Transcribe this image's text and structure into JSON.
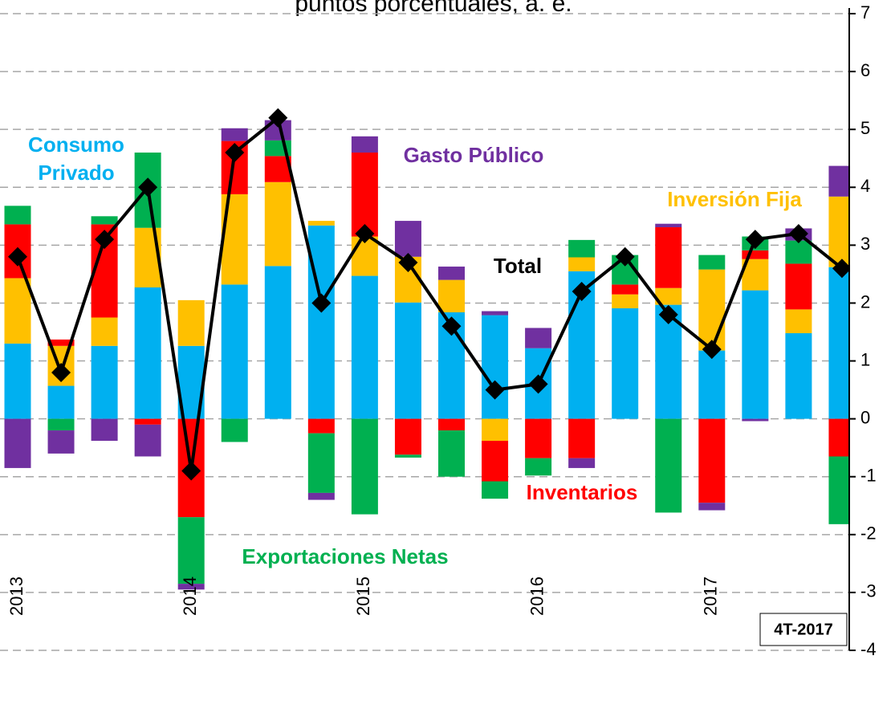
{
  "chart_data": {
    "type": "bar",
    "stacked": true,
    "title": "puntos porcentuales, a. e.",
    "annotation": "4T-2017",
    "categories": [
      "2013",
      null,
      null,
      null,
      "2014",
      null,
      null,
      null,
      "2015",
      null,
      null,
      null,
      "2016",
      null,
      null,
      null,
      "2017",
      null,
      null,
      null
    ],
    "series": [
      {
        "name": "Consumo Privado",
        "color": "#00b0f0",
        "values": [
          1.3,
          0.57,
          1.26,
          2.27,
          1.26,
          2.32,
          2.64,
          3.34,
          2.47,
          2.01,
          1.84,
          1.79,
          1.22,
          2.55,
          1.91,
          1.97,
          1.18,
          2.22,
          1.48,
          2.62
        ]
      },
      {
        "name": "Inversión Fija",
        "color": "#ffc000",
        "values": [
          1.13,
          0.69,
          0.49,
          1.03,
          0.79,
          1.56,
          1.45,
          0.08,
          0.68,
          0.79,
          0.56,
          -0.38,
          0,
          0.24,
          0.24,
          0.29,
          1.4,
          0.54,
          0.41,
          1.22
        ]
      },
      {
        "name": "Inventarios",
        "color": "#ff0000",
        "values": [
          0.93,
          0.11,
          1.61,
          -0.1,
          -1.7,
          0.92,
          0.45,
          -0.25,
          1.45,
          -0.62,
          -0.2,
          -0.7,
          -0.68,
          -0.68,
          0.17,
          1.05,
          -1.45,
          0.15,
          0.79,
          -0.65
        ]
      },
      {
        "name": "Exportaciones Netas",
        "color": "#00b050",
        "values": [
          0.32,
          -0.2,
          0.14,
          1.3,
          -1.15,
          -0.4,
          0.27,
          -1.03,
          -1.65,
          -0.05,
          -0.8,
          -0.3,
          -0.3,
          0.3,
          0.51,
          -1.62,
          0.25,
          0.24,
          0.4,
          -1.17
        ]
      },
      {
        "name": "Gasto Público",
        "color": "#7030a0",
        "values": [
          -0.85,
          -0.4,
          -0.38,
          -0.55,
          -0.1,
          0.22,
          0.35,
          -0.12,
          0.28,
          0.62,
          0.23,
          0.07,
          0.35,
          -0.17,
          0,
          0.06,
          -0.13,
          -0.04,
          0.21,
          0.53
        ]
      },
      {
        "name": "Total",
        "type": "line",
        "color": "#000000",
        "values": [
          2.8,
          0.8,
          3.1,
          4.0,
          -0.9,
          4.6,
          5.2,
          2.0,
          3.2,
          2.7,
          1.6,
          0.5,
          0.6,
          2.2,
          2.8,
          1.8,
          1.2,
          3.1,
          3.2,
          2.6
        ]
      }
    ],
    "ylim": [
      -4,
      7
    ],
    "yticks": [
      -4,
      -3,
      -2,
      -1,
      0,
      1,
      2,
      3,
      4,
      5,
      6,
      7
    ],
    "grid": true
  }
}
